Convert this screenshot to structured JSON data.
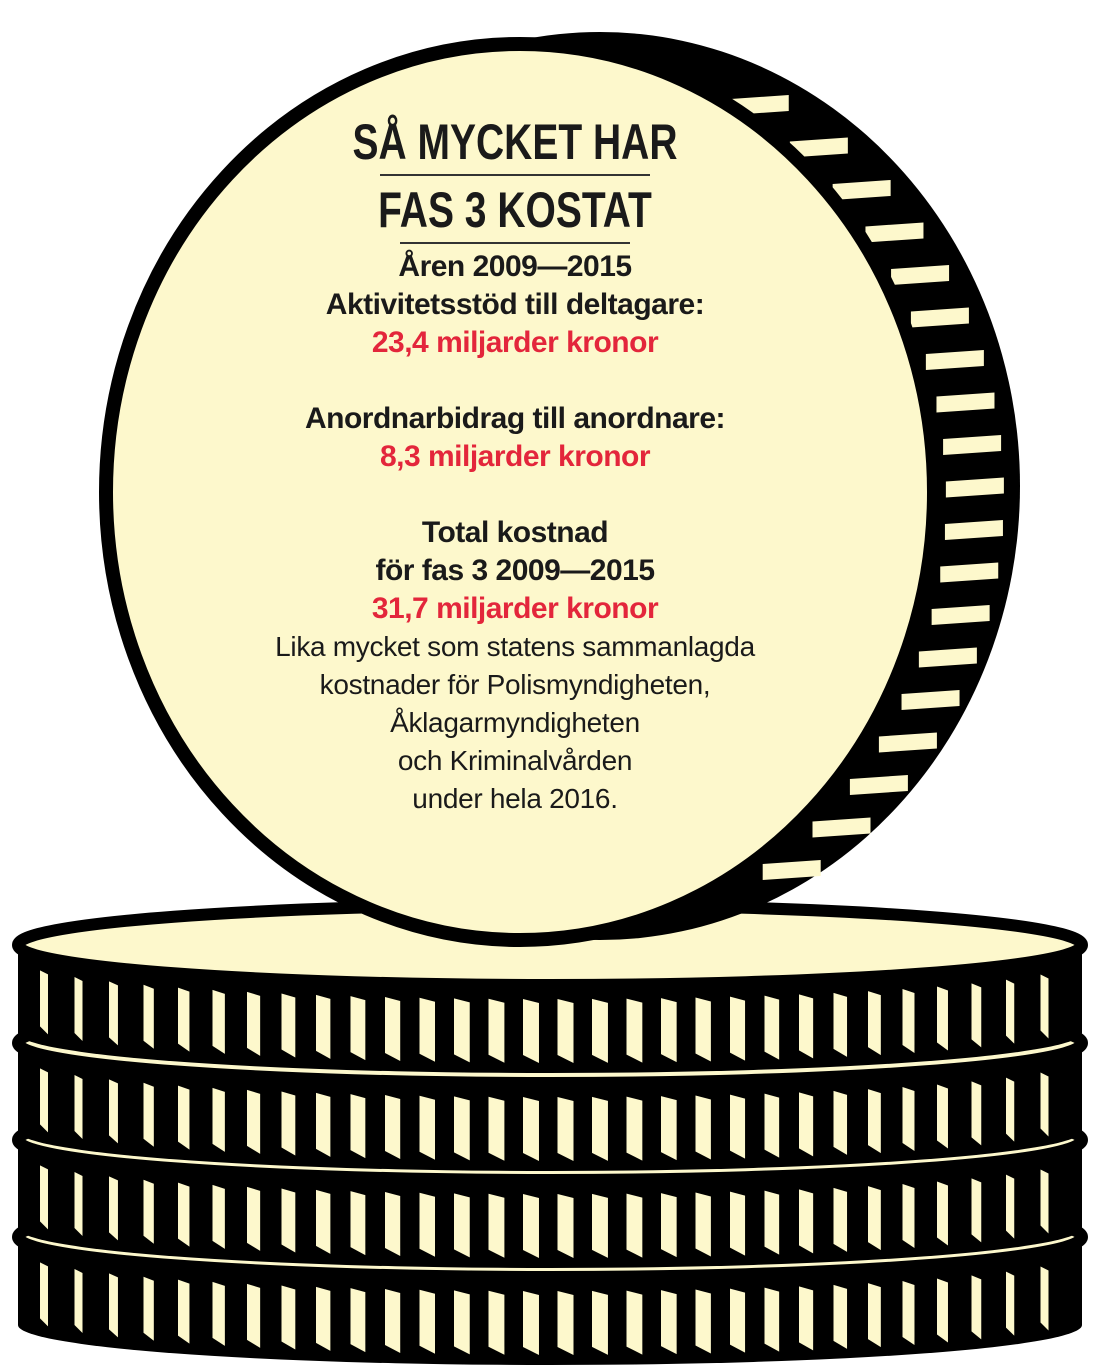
{
  "colors": {
    "coin_fill": "#fdf8cc",
    "outline": "#000000",
    "highlight": "#e3263b",
    "text": "#1a1a1a"
  },
  "title": {
    "line1": "SÅ MYCKET HAR",
    "line2": "FAS 3 KOSTAT"
  },
  "period": "Åren 2009—2015",
  "items": [
    {
      "label": "Aktivitetsstöd till deltagare:",
      "value": "23,4 miljarder kronor"
    },
    {
      "label": "Anordnarbidrag till anordnare:",
      "value": "8,3 miljarder kronor"
    }
  ],
  "total": {
    "label_line1": "Total kostnad",
    "label_line2": "för fas 3 2009—2015",
    "value": "31,7 miljarder kronor"
  },
  "comparison": [
    "Lika mycket som statens sammanlagda",
    "kostnader för Polismyndigheten,",
    "Åklagarmyndigheten",
    "och Kriminalvården",
    "under hela 2016."
  ]
}
